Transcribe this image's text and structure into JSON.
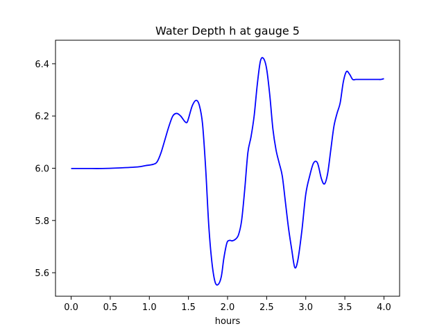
{
  "chart_data": {
    "type": "line",
    "title": "Water Depth h at gauge 5",
    "xlabel": "hours",
    "ylabel": "",
    "xlim": [
      -0.2,
      4.2
    ],
    "ylim": [
      5.51,
      6.49
    ],
    "xticks": [
      0.0,
      0.5,
      1.0,
      1.5,
      2.0,
      2.5,
      3.0,
      3.5,
      4.0
    ],
    "xtick_labels": [
      "0.0",
      "0.5",
      "1.0",
      "1.5",
      "2.0",
      "2.5",
      "3.0",
      "3.5",
      "4.0"
    ],
    "yticks": [
      5.6,
      5.8,
      6.0,
      6.2,
      6.4
    ],
    "ytick_labels": [
      "5.6",
      "5.8",
      "6.0",
      "6.2",
      "6.4"
    ],
    "grid": false,
    "series": [
      {
        "color": "#0000ff",
        "x": [
          0.0,
          0.2,
          0.4,
          0.6,
          0.85,
          0.95,
          1.05,
          1.1,
          1.15,
          1.2,
          1.25,
          1.3,
          1.35,
          1.4,
          1.45,
          1.48,
          1.5,
          1.55,
          1.6,
          1.64,
          1.68,
          1.72,
          1.76,
          1.8,
          1.84,
          1.88,
          1.92,
          1.95,
          1.98,
          2.0,
          2.03,
          2.06,
          2.1,
          2.14,
          2.18,
          2.22,
          2.26,
          2.3,
          2.34,
          2.38,
          2.42,
          2.46,
          2.5,
          2.54,
          2.58,
          2.62,
          2.66,
          2.7,
          2.74,
          2.78,
          2.82,
          2.86,
          2.9,
          2.95,
          3.0,
          3.05,
          3.1,
          3.15,
          3.2,
          3.24,
          3.28,
          3.32,
          3.36,
          3.4,
          3.44,
          3.48,
          3.52,
          3.56,
          3.6,
          3.64,
          3.68,
          3.72,
          3.76,
          3.8,
          3.84,
          3.88,
          3.92,
          3.96,
          4.0
        ],
        "y": [
          5.999,
          5.999,
          5.999,
          6.001,
          6.005,
          6.01,
          6.015,
          6.025,
          6.06,
          6.11,
          6.16,
          6.2,
          6.21,
          6.2,
          6.18,
          6.175,
          6.19,
          6.24,
          6.26,
          6.24,
          6.17,
          6.0,
          5.78,
          5.64,
          5.565,
          5.555,
          5.585,
          5.65,
          5.7,
          5.72,
          5.724,
          5.722,
          5.728,
          5.745,
          5.8,
          5.92,
          6.06,
          6.12,
          6.2,
          6.32,
          6.41,
          6.42,
          6.38,
          6.28,
          6.15,
          6.07,
          6.02,
          5.97,
          5.87,
          5.77,
          5.69,
          5.62,
          5.65,
          5.76,
          5.9,
          5.97,
          6.02,
          6.02,
          5.96,
          5.94,
          5.98,
          6.07,
          6.16,
          6.21,
          6.25,
          6.33,
          6.37,
          6.36,
          6.34,
          6.34,
          6.34,
          6.34,
          6.34,
          6.34,
          6.34,
          6.34,
          6.34,
          6.34,
          6.343
        ]
      }
    ]
  }
}
